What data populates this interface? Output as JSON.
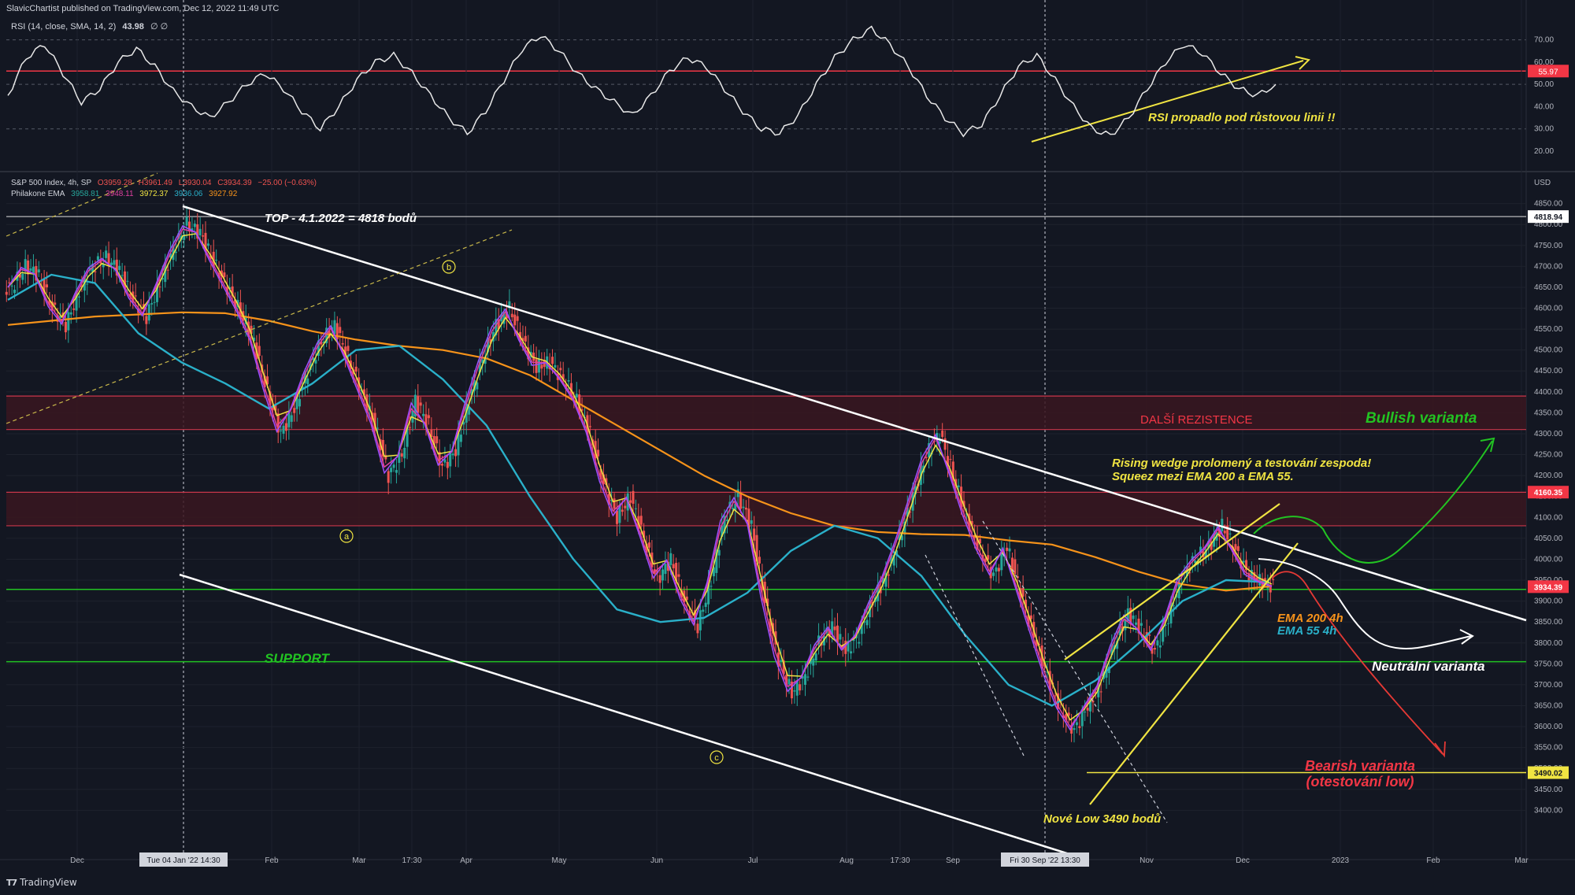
{
  "header": {
    "published": "SlavicChartist published on TradingView.com, Dec 12, 2022 11:49 UTC",
    "rsi_label": "RSI (14, close, SMA, 14, 2)",
    "rsi_value": "43.98",
    "rsi_extra": "∅ ∅",
    "symbol": "S&P 500 Index, 4h, SP",
    "ohlc": {
      "o": "O3959.28",
      "h": "H3961.49",
      "l": "L3930.04",
      "c": "C3934.39",
      "chg": "−25.00 (−0.63%)"
    },
    "ema_label": "Philakone EMA",
    "ema_values": [
      "3958.81",
      "3948.11",
      "3972.37",
      "3936.06",
      "3927.92"
    ]
  },
  "footer": {
    "brand": "TradingView"
  },
  "colors": {
    "bg": "#131722",
    "up": "#26a69a",
    "down": "#ef5350",
    "ema200": "#f7931a",
    "ema55": "#2ab0c9",
    "ema_yellow": "#f0e442",
    "ema_pink": "#e040a0"
  },
  "chart_data": [
    {
      "type": "line",
      "name": "RSI panel",
      "ylim": [
        20,
        78
      ],
      "y_ticks": [
        "70.00",
        "60.00",
        "50.00",
        "40.00",
        "30.00",
        "20.00"
      ],
      "markers": [
        "55.97"
      ],
      "levels_dotted": [
        70,
        50,
        30
      ],
      "series": [
        {
          "values": [
            45,
            62,
            68,
            55,
            42,
            48,
            60,
            66,
            58,
            47,
            40,
            35,
            42,
            50,
            55,
            48,
            38,
            30,
            40,
            52,
            60,
            63,
            55,
            45,
            35,
            28,
            38,
            52,
            66,
            72,
            65,
            55,
            48,
            42,
            36,
            45,
            56,
            62,
            58,
            48,
            38,
            30,
            28,
            36,
            50,
            62,
            70,
            75,
            68,
            58,
            45,
            35,
            28,
            32,
            45,
            58,
            63,
            52,
            40,
            30,
            27,
            35,
            48,
            60,
            68,
            64,
            55,
            48,
            45,
            50
          ]
        }
      ],
      "annotation": "RSI propadlo pod růstovou linii !!"
    },
    {
      "type": "candlestick",
      "name": "S&P 500 Index, 4h",
      "ylim": [
        3380,
        4870
      ],
      "y_ticks": [
        "4850.00",
        "4800.00",
        "4750.00",
        "4700.00",
        "4650.00",
        "4600.00",
        "4550.00",
        "4500.00",
        "4450.00",
        "4400.00",
        "4350.00",
        "4300.00",
        "4250.00",
        "4200.00",
        "4150.00",
        "4100.00",
        "4050.00",
        "4000.00",
        "3950.00",
        "3900.00",
        "3850.00",
        "3800.00",
        "3750.00",
        "3700.00",
        "3650.00",
        "3600.00",
        "3550.00",
        "3500.00",
        "3450.00",
        "3400.00"
      ],
      "currency": "USD",
      "x_ticks": [
        "Dec",
        "Tue 04 Jan '22   14:30",
        "Feb",
        "Mar",
        "17:30",
        "Apr",
        "May",
        "Jun",
        "Jul",
        "Aug",
        "17:30",
        "Sep",
        "Fri 30 Sep '22   13:30",
        "Nov",
        "Dec",
        "2023",
        "Feb",
        "Mar"
      ],
      "price_markers": [
        {
          "label": "4818.94",
          "value": 4818.94
        },
        {
          "label": "4160.35",
          "value": 4160.35
        },
        {
          "label": "3934.39",
          "value": 3934.39
        },
        {
          "label": "3490.02",
          "value": 3490.02
        }
      ],
      "closes": [
        4650,
        4700,
        4680,
        4600,
        4560,
        4640,
        4700,
        4720,
        4690,
        4620,
        4580,
        4660,
        4740,
        4800,
        4780,
        4710,
        4650,
        4590,
        4520,
        4400,
        4300,
        4360,
        4450,
        4520,
        4560,
        4480,
        4400,
        4320,
        4200,
        4250,
        4380,
        4320,
        4220,
        4260,
        4380,
        4480,
        4560,
        4600,
        4520,
        4460,
        4470,
        4430,
        4380,
        4300,
        4180,
        4100,
        4150,
        4050,
        3950,
        4000,
        3900,
        3840,
        3950,
        4100,
        4150,
        4080,
        3900,
        3760,
        3680,
        3720,
        3800,
        3840,
        3780,
        3820,
        3900,
        3960,
        4050,
        4150,
        4250,
        4300,
        4200,
        4100,
        4020,
        3960,
        4030,
        3920,
        3820,
        3720,
        3640,
        3590,
        3650,
        3700,
        3800,
        3870,
        3830,
        3780,
        3860,
        3960,
        4000,
        4030,
        4080,
        4020,
        3960,
        3945,
        3934
      ],
      "ema_200": [
        4560,
        4570,
        4580,
        4585,
        4590,
        4588,
        4570,
        4545,
        4525,
        4510,
        4500,
        4480,
        4440,
        4380,
        4320,
        4260,
        4200,
        4150,
        4110,
        4080,
        4065,
        4060,
        4058,
        4045,
        4035,
        4005,
        3970,
        3940,
        3925,
        3935
      ],
      "ema_55": [
        4620,
        4680,
        4660,
        4540,
        4470,
        4420,
        4360,
        4420,
        4500,
        4510,
        4430,
        4320,
        4150,
        4000,
        3880,
        3850,
        3860,
        3920,
        4020,
        4080,
        4050,
        3960,
        3820,
        3700,
        3650,
        3710,
        3800,
        3900,
        3950,
        3945
      ],
      "annotations": {
        "top": "TOP - 4.1.2022 = 4818 bodů",
        "resistance": "DALŠÍ REZISTENCE",
        "bullish": "Bullish varianta",
        "wedge_line1": "Rising wedge prolomený a testování zespoda!",
        "wedge_line2": "Squeez mezi EMA 200 a EMA 55.",
        "ema200": "EMA 200 4h",
        "ema55": "EMA 55 4h",
        "neutral": "Neutrální varianta",
        "support": "SUPPORT",
        "bearish_line1": "Bearish varianta",
        "bearish_line2": "(otestování low)",
        "new_low": "Nové Low 3490 bodů",
        "wave_a": "a",
        "wave_b": "b",
        "wave_c": "c"
      }
    }
  ]
}
